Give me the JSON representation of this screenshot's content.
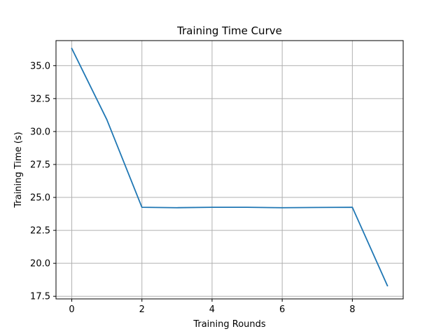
{
  "chart_data": {
    "type": "line",
    "title": "Training Time Curve",
    "xlabel": "Training Rounds",
    "ylabel": "Training Time (s)",
    "x": [
      0,
      1,
      2,
      3,
      4,
      5,
      6,
      7,
      8,
      9
    ],
    "series": [
      {
        "values": [
          36.3,
          30.9,
          24.25,
          24.22,
          24.25,
          24.25,
          24.22,
          24.24,
          24.25,
          18.3
        ],
        "color": "#1f77b4"
      }
    ],
    "xlim": [
      -0.45,
      9.45
    ],
    "ylim": [
      17.3,
      36.9
    ],
    "xticks": [
      0,
      2,
      4,
      6,
      8
    ],
    "xtick_labels": [
      "0",
      "2",
      "4",
      "6",
      "8"
    ],
    "yticks": [
      17.5,
      20.0,
      22.5,
      25.0,
      27.5,
      30.0,
      32.5,
      35.0
    ],
    "ytick_labels": [
      "17.5",
      "20.0",
      "22.5",
      "25.0",
      "27.5",
      "30.0",
      "32.5",
      "35.0"
    ],
    "grid": true,
    "legend": false
  }
}
